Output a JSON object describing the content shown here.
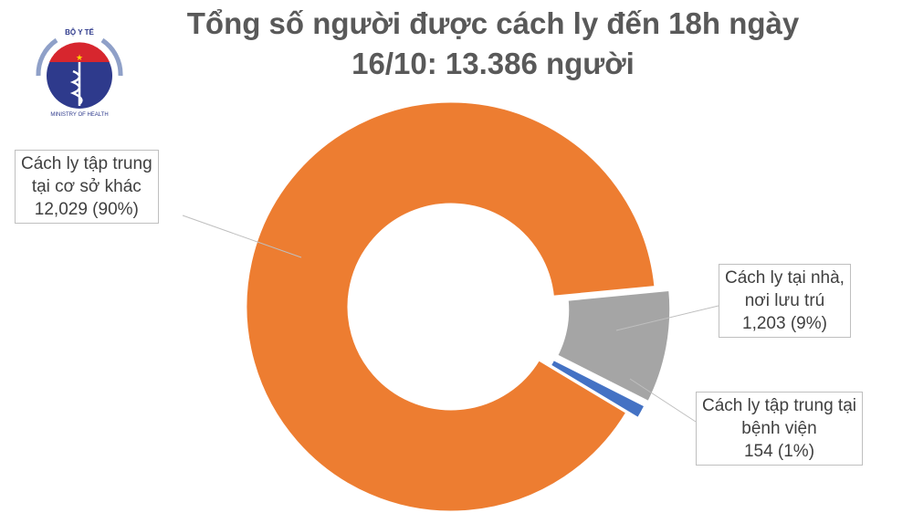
{
  "logo": {
    "top_text": "BỘ Y TẾ",
    "bottom_text": "MINISTRY OF HEALTH"
  },
  "chart_data": {
    "type": "pie",
    "variant": "donut",
    "title_line1": "Tổng số người được cách ly đến 18h ngày",
    "title_line2": "16/10: 13.386 người",
    "slices": [
      {
        "name": "Cách ly tập trung tại cơ sở khác",
        "label_lines": [
          "Cách ly tập trung",
          "tại cơ sở khác",
          "12,029 (90%)"
        ],
        "value": 12029,
        "percent": 90,
        "color": "#ed7d31"
      },
      {
        "name": "Cách ly tại nhà, nơi lưu trú",
        "label_lines": [
          "Cách ly tại nhà,",
          "nơi lưu trú",
          "1,203 (9%)"
        ],
        "value": 1203,
        "percent": 9,
        "color": "#a5a5a5"
      },
      {
        "name": "Cách ly tập trung tại bệnh viện",
        "label_lines": [
          "Cách ly tập trung tại",
          "bệnh viện",
          "154 (1%)"
        ],
        "value": 154,
        "percent": 1,
        "color": "#4472c4"
      }
    ]
  }
}
